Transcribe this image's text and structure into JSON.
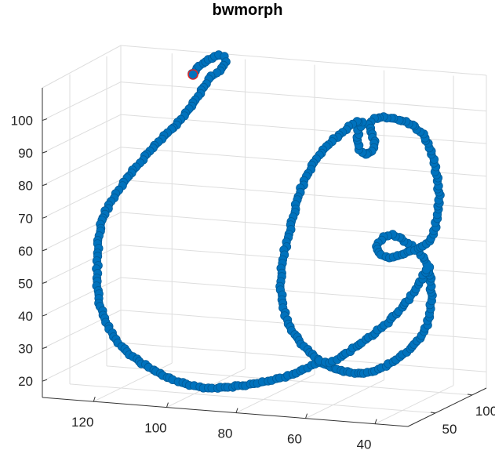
{
  "chart_data": {
    "type": "line3d",
    "title": "bwmorph",
    "xlabel": "",
    "ylabel": "",
    "zlabel": "",
    "axes": {
      "x_ticks": [
        "120",
        "100",
        "80",
        "60",
        "40"
      ],
      "y_ticks": [
        "50",
        "100"
      ],
      "z_ticks": [
        "20",
        "30",
        "40",
        "50",
        "60",
        "70",
        "80",
        "90",
        "100"
      ]
    },
    "grid": true,
    "colors": {
      "series": "#0072BD",
      "start_marker": "#D62728",
      "grid": "#DDDDDD",
      "axis": "#333333"
    },
    "series": [
      {
        "marker": "filled-circle",
        "start_marker": "red-circle",
        "points": [
          [
            246,
            95
          ],
          [
            251,
            88
          ],
          [
            258,
            82
          ],
          [
            266,
            77
          ],
          [
            273,
            73
          ],
          [
            280,
            71
          ],
          [
            286,
            73
          ],
          [
            287,
            80
          ],
          [
            283,
            88
          ],
          [
            276,
            94
          ],
          [
            270,
            98
          ],
          [
            266,
            102
          ],
          [
            262,
            108
          ],
          [
            257,
            116
          ],
          [
            252,
            124
          ],
          [
            247,
            132
          ],
          [
            241,
            140
          ],
          [
            234,
            149
          ],
          [
            227,
            157
          ],
          [
            218,
            166
          ],
          [
            210,
            174
          ],
          [
            202,
            182
          ],
          [
            194,
            190
          ],
          [
            185,
            200
          ],
          [
            178,
            209
          ],
          [
            170,
            218
          ],
          [
            162,
            228
          ],
          [
            155,
            238
          ],
          [
            148,
            248
          ],
          [
            141,
            258
          ],
          [
            135,
            270
          ],
          [
            130,
            282
          ],
          [
            127,
            296
          ],
          [
            125,
            312
          ],
          [
            124,
            328
          ],
          [
            124,
            344
          ],
          [
            124,
            360
          ],
          [
            125,
            376
          ],
          [
            128,
            392
          ],
          [
            133,
            407
          ],
          [
            140,
            421
          ],
          [
            148,
            434
          ],
          [
            158,
            446
          ],
          [
            170,
            456
          ],
          [
            185,
            466
          ],
          [
            200,
            475
          ],
          [
            216,
            483
          ],
          [
            232,
            489
          ],
          [
            248,
            493
          ],
          [
            265,
            496
          ],
          [
            282,
            495
          ],
          [
            300,
            493
          ],
          [
            318,
            491
          ],
          [
            335,
            488
          ],
          [
            352,
            484
          ],
          [
            368,
            480
          ],
          [
            383,
            474
          ],
          [
            396,
            467
          ],
          [
            407,
            463
          ],
          [
            418,
            467
          ],
          [
            430,
            472
          ],
          [
            443,
            475
          ],
          [
            456,
            477
          ],
          [
            469,
            476
          ],
          [
            482,
            472
          ],
          [
            496,
            465
          ],
          [
            510,
            456
          ],
          [
            522,
            446
          ],
          [
            532,
            436
          ],
          [
            540,
            424
          ],
          [
            546,
            410
          ],
          [
            549,
            395
          ],
          [
            550,
            378
          ],
          [
            549,
            360
          ],
          [
            547,
            342
          ],
          [
            542,
            332
          ],
          [
            534,
            322
          ],
          [
            524,
            314
          ],
          [
            512,
            305
          ],
          [
            500,
            300
          ],
          [
            490,
            303
          ],
          [
            482,
            311
          ],
          [
            480,
            319
          ],
          [
            486,
            326
          ],
          [
            496,
            330
          ],
          [
            508,
            327
          ],
          [
            520,
            322
          ],
          [
            532,
            318
          ],
          [
            544,
            312
          ],
          [
            552,
            300
          ],
          [
            556,
            285
          ],
          [
            559,
            268
          ],
          [
            560,
            250
          ],
          [
            558,
            232
          ],
          [
            555,
            214
          ],
          [
            551,
            198
          ],
          [
            546,
            184
          ],
          [
            539,
            172
          ],
          [
            529,
            162
          ],
          [
            517,
            156
          ],
          [
            503,
            152
          ],
          [
            489,
            150
          ],
          [
            476,
            152
          ],
          [
            470,
            160
          ],
          [
            474,
            172
          ],
          [
            478,
            184
          ],
          [
            474,
            194
          ],
          [
            466,
            198
          ],
          [
            458,
            192
          ],
          [
            455,
            180
          ],
          [
            457,
            167
          ],
          [
            462,
            157
          ],
          [
            454,
            156
          ],
          [
            445,
            162
          ],
          [
            436,
            170
          ],
          [
            426,
            178
          ],
          [
            416,
            188
          ],
          [
            406,
            199
          ],
          [
            398,
            212
          ],
          [
            390,
            226
          ],
          [
            384,
            241
          ],
          [
            379,
            256
          ],
          [
            375,
            272
          ],
          [
            371,
            288
          ],
          [
            367,
            304
          ],
          [
            363,
            320
          ],
          [
            360,
            337
          ],
          [
            358,
            354
          ],
          [
            358,
            371
          ],
          [
            360,
            388
          ],
          [
            364,
            404
          ],
          [
            370,
            418
          ],
          [
            378,
            431
          ],
          [
            388,
            443
          ],
          [
            398,
            453
          ],
          [
            408,
            461
          ],
          [
            420,
            464
          ],
          [
            434,
            456
          ],
          [
            450,
            445
          ],
          [
            466,
            434
          ],
          [
            482,
            422
          ],
          [
            498,
            408
          ],
          [
            512,
            393
          ],
          [
            524,
            378
          ],
          [
            533,
            364
          ],
          [
            540,
            352
          ],
          [
            546,
            340
          ]
        ]
      }
    ]
  }
}
